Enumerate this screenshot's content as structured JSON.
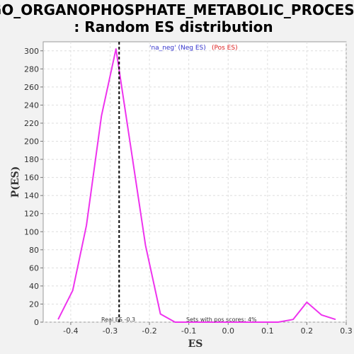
{
  "chart_data": {
    "type": "line",
    "title_line1": "GO_ORGANOPHOSPHATE_METABOLIC_PROCESS",
    "title_line2": ": Random ES distribution",
    "xlabel": "ES",
    "ylabel": "P(ES)",
    "xlim": [
      -0.47,
      0.3
    ],
    "ylim": [
      0,
      310
    ],
    "xticks": [
      -0.4,
      -0.3,
      -0.2,
      -0.1,
      0.0,
      0.1,
      0.2,
      0.3
    ],
    "xtick_labels": [
      "-0.4",
      "-0.3",
      "-0.2",
      "-0.1",
      "0.0",
      "0.1",
      "0.2",
      "0.3"
    ],
    "yticks": [
      0,
      20,
      40,
      60,
      80,
      100,
      120,
      140,
      160,
      180,
      200,
      220,
      240,
      260,
      280,
      300
    ],
    "grid": true,
    "series": [
      {
        "color": "#ee33ee",
        "x": [
          -0.432,
          -0.395,
          -0.36,
          -0.322,
          -0.285,
          -0.248,
          -0.21,
          -0.172,
          -0.135,
          -0.098,
          -0.06,
          -0.023,
          0.015,
          0.052,
          0.09,
          0.127,
          0.165,
          0.2,
          0.237,
          0.273
        ],
        "y": [
          3,
          35,
          107,
          228,
          302,
          195,
          85,
          9,
          0,
          0,
          0,
          0,
          0,
          0,
          0,
          0,
          3,
          22,
          8,
          3
        ]
      }
    ],
    "real_es": {
      "x": -0.277,
      "color": "#000000",
      "label": "Real ES -0.3"
    },
    "legend": {
      "position": "top-center",
      "items": [
        {
          "text": "'na_neg' (Neg ES)",
          "color": "#3333cc"
        },
        {
          "text": "(Pos ES)",
          "color": "#dd2222"
        }
      ]
    },
    "annotation": "Sets with pos scores: 4%"
  }
}
